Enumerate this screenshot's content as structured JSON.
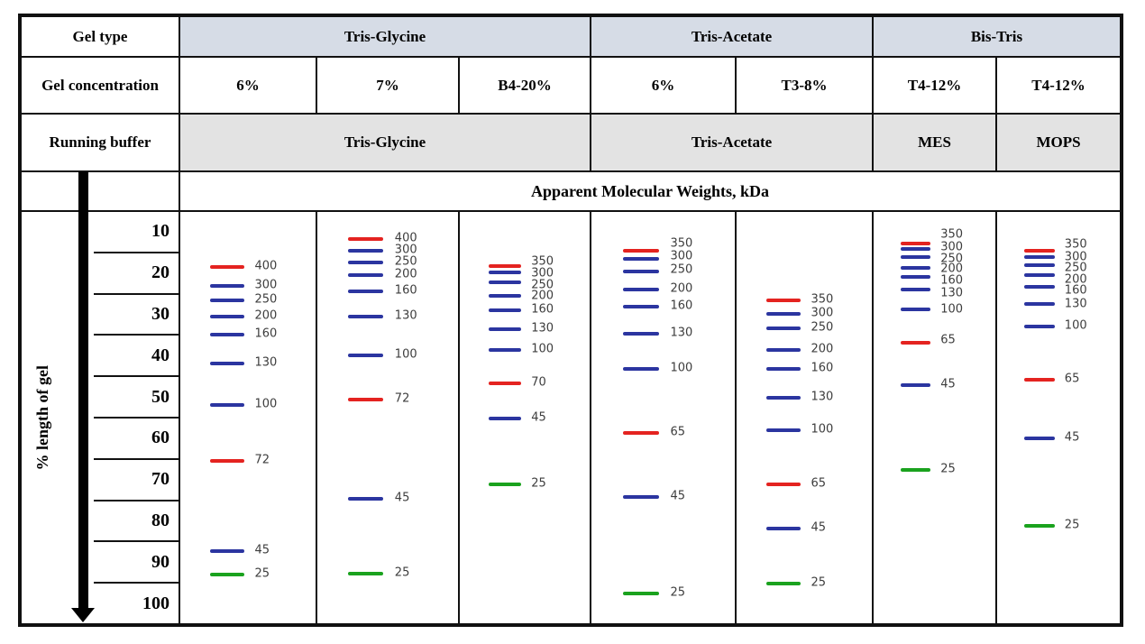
{
  "header": {
    "row_labels": {
      "gel_type": "Gel type",
      "gel_concentration": "Gel concentration",
      "running_buffer": "Running buffer"
    },
    "groups": [
      {
        "name": "Tris-Glycine",
        "span": 3
      },
      {
        "name": "Tris-Acetate",
        "span": 2
      },
      {
        "name": "Bis-Tris",
        "span": 2
      }
    ],
    "running_buffers": [
      {
        "name": "Tris-Glycine",
        "span": 3
      },
      {
        "name": "Tris-Acetate",
        "span": 2
      },
      {
        "name": "MES",
        "span": 1
      },
      {
        "name": "MOPS",
        "span": 1
      }
    ],
    "mw_title": "Apparent Molecular Weights, kDa",
    "axis_label": "% length of gel"
  },
  "colors": {
    "red": "#e42320",
    "blue": "#2b35a0",
    "green": "#1aa21e",
    "group_header_fill": "#d6dce6",
    "buffer_row_fill": "#e3e3e3",
    "border": "#111111",
    "band_label_text": "#3d3d3d"
  },
  "chart_data": {
    "type": "table",
    "title": "Apparent Molecular Weights, kDa",
    "y_axis": {
      "label": "% length of gel",
      "ticks": [
        10,
        20,
        30,
        40,
        50,
        60,
        70,
        80,
        90,
        100
      ],
      "range": [
        0,
        100
      ],
      "direction": "top-to-bottom"
    },
    "legend": "band pct = migration position as % length of gel; colors: red/blue/green marker bands",
    "lanes": [
      {
        "gel_type": "Tris-Glycine",
        "gel_concentration": "6%",
        "running_buffer": "Tris-Glycine",
        "bands": [
          {
            "kda": 400,
            "color": "red",
            "pct": 13.3,
            "label_pct": 13.3
          },
          {
            "kda": 300,
            "color": "blue",
            "pct": 17.9,
            "label_pct": 17.9
          },
          {
            "kda": 250,
            "color": "blue",
            "pct": 21.4,
            "label_pct": 21.4
          },
          {
            "kda": 200,
            "color": "blue",
            "pct": 25.5,
            "label_pct": 25.5
          },
          {
            "kda": 160,
            "color": "blue",
            "pct": 29.9,
            "label_pct": 29.9
          },
          {
            "kda": 130,
            "color": "blue",
            "pct": 36.9,
            "label_pct": 36.9
          },
          {
            "kda": 100,
            "color": "blue",
            "pct": 46.9,
            "label_pct": 46.9
          },
          {
            "kda": 72,
            "color": "red",
            "pct": 60.5,
            "label_pct": 60.5
          },
          {
            "kda": 45,
            "color": "blue",
            "pct": 82.5,
            "label_pct": 82.5
          },
          {
            "kda": 25,
            "color": "green",
            "pct": 88.2,
            "label_pct": 88.2
          }
        ]
      },
      {
        "gel_type": "Tris-Glycine",
        "gel_concentration": "7%",
        "running_buffer": "Tris-Glycine",
        "bands": [
          {
            "kda": 400,
            "color": "red",
            "pct": 6.6,
            "label_pct": 6.6
          },
          {
            "kda": 300,
            "color": "blue",
            "pct": 9.4,
            "label_pct": 9.4
          },
          {
            "kda": 250,
            "color": "blue",
            "pct": 12.2,
            "label_pct": 12.2
          },
          {
            "kda": 200,
            "color": "blue",
            "pct": 15.3,
            "label_pct": 15.3
          },
          {
            "kda": 160,
            "color": "blue",
            "pct": 19.4,
            "label_pct": 19.4
          },
          {
            "kda": 130,
            "color": "blue",
            "pct": 25.5,
            "label_pct": 25.5
          },
          {
            "kda": 100,
            "color": "blue",
            "pct": 34.9,
            "label_pct": 34.9
          },
          {
            "kda": 72,
            "color": "red",
            "pct": 45.6,
            "label_pct": 45.6
          },
          {
            "kda": 45,
            "color": "blue",
            "pct": 69.7,
            "label_pct": 69.7
          },
          {
            "kda": 25,
            "color": "green",
            "pct": 88.0,
            "label_pct": 88.0
          }
        ]
      },
      {
        "gel_type": "Tris-Glycine",
        "gel_concentration": "B4-20%",
        "running_buffer": "Tris-Glycine",
        "bands": [
          {
            "kda": 350,
            "color": "red",
            "pct": 13.1,
            "label_pct": 12.2
          },
          {
            "kda": 300,
            "color": "blue",
            "pct": 14.8,
            "label_pct": 15.1
          },
          {
            "kda": 250,
            "color": "blue",
            "pct": 17.2,
            "label_pct": 17.9
          },
          {
            "kda": 200,
            "color": "blue",
            "pct": 20.5,
            "label_pct": 20.7
          },
          {
            "kda": 160,
            "color": "blue",
            "pct": 23.8,
            "label_pct": 23.8
          },
          {
            "kda": 130,
            "color": "blue",
            "pct": 28.4,
            "label_pct": 28.4
          },
          {
            "kda": 100,
            "color": "blue",
            "pct": 33.6,
            "label_pct": 33.6
          },
          {
            "kda": 70,
            "color": "red",
            "pct": 41.7,
            "label_pct": 41.7
          },
          {
            "kda": 45,
            "color": "blue",
            "pct": 50.2,
            "label_pct": 50.2
          },
          {
            "kda": 25,
            "color": "green",
            "pct": 66.2,
            "label_pct": 66.2
          }
        ]
      },
      {
        "gel_type": "Tris-Acetate",
        "gel_concentration": "6%",
        "running_buffer": "Tris-Acetate",
        "bands": [
          {
            "kda": 350,
            "color": "red",
            "pct": 9.4,
            "label_pct": 7.9
          },
          {
            "kda": 300,
            "color": "blue",
            "pct": 11.4,
            "label_pct": 10.9
          },
          {
            "kda": 250,
            "color": "blue",
            "pct": 14.4,
            "label_pct": 14.2
          },
          {
            "kda": 200,
            "color": "blue",
            "pct": 18.8,
            "label_pct": 18.8
          },
          {
            "kda": 160,
            "color": "blue",
            "pct": 23.1,
            "label_pct": 23.1
          },
          {
            "kda": 130,
            "color": "blue",
            "pct": 29.5,
            "label_pct": 29.5
          },
          {
            "kda": 100,
            "color": "blue",
            "pct": 38.2,
            "label_pct": 38.2
          },
          {
            "kda": 65,
            "color": "red",
            "pct": 53.7,
            "label_pct": 53.7
          },
          {
            "kda": 45,
            "color": "blue",
            "pct": 69.2,
            "label_pct": 69.2
          },
          {
            "kda": 25,
            "color": "green",
            "pct": 92.8,
            "label_pct": 92.8
          }
        ]
      },
      {
        "gel_type": "Tris-Acetate",
        "gel_concentration": "T3-8%",
        "running_buffer": "Tris-Acetate",
        "bands": [
          {
            "kda": 350,
            "color": "red",
            "pct": 21.6,
            "label_pct": 21.6
          },
          {
            "kda": 300,
            "color": "blue",
            "pct": 24.7,
            "label_pct": 24.7
          },
          {
            "kda": 250,
            "color": "blue",
            "pct": 28.2,
            "label_pct": 28.2
          },
          {
            "kda": 200,
            "color": "blue",
            "pct": 33.6,
            "label_pct": 33.6
          },
          {
            "kda": 160,
            "color": "blue",
            "pct": 38.2,
            "label_pct": 38.2
          },
          {
            "kda": 130,
            "color": "blue",
            "pct": 45.2,
            "label_pct": 45.2
          },
          {
            "kda": 100,
            "color": "blue",
            "pct": 53.1,
            "label_pct": 53.1
          },
          {
            "kda": 65,
            "color": "red",
            "pct": 66.2,
            "label_pct": 66.2
          },
          {
            "kda": 45,
            "color": "blue",
            "pct": 76.9,
            "label_pct": 76.9
          },
          {
            "kda": 25,
            "color": "green",
            "pct": 90.4,
            "label_pct": 90.4
          }
        ]
      },
      {
        "gel_type": "Bis-Tris",
        "gel_concentration": "T4-12%",
        "running_buffer": "MES",
        "bands": [
          {
            "kda": 350,
            "color": "red",
            "pct": 7.6,
            "label_pct": 5.7
          },
          {
            "kda": 300,
            "color": "blue",
            "pct": 9.0,
            "label_pct": 8.7
          },
          {
            "kda": 250,
            "color": "blue",
            "pct": 10.9,
            "label_pct": 11.6
          },
          {
            "kda": 200,
            "color": "blue",
            "pct": 13.5,
            "label_pct": 14.0
          },
          {
            "kda": 160,
            "color": "blue",
            "pct": 15.7,
            "label_pct": 16.8
          },
          {
            "kda": 130,
            "color": "blue",
            "pct": 18.8,
            "label_pct": 19.9
          },
          {
            "kda": 100,
            "color": "blue",
            "pct": 23.6,
            "label_pct": 24.0
          },
          {
            "kda": 65,
            "color": "red",
            "pct": 31.7,
            "label_pct": 31.4
          },
          {
            "kda": 45,
            "color": "blue",
            "pct": 42.1,
            "label_pct": 42.1
          },
          {
            "kda": 25,
            "color": "green",
            "pct": 62.7,
            "label_pct": 62.7
          }
        ]
      },
      {
        "gel_type": "Bis-Tris",
        "gel_concentration": "T4-12%",
        "running_buffer": "MOPS",
        "bands": [
          {
            "kda": 350,
            "color": "red",
            "pct": 9.4,
            "label_pct": 8.1
          },
          {
            "kda": 300,
            "color": "blue",
            "pct": 10.9,
            "label_pct": 11.1
          },
          {
            "kda": 250,
            "color": "blue",
            "pct": 12.9,
            "label_pct": 13.8
          },
          {
            "kda": 200,
            "color": "blue",
            "pct": 15.3,
            "label_pct": 16.6
          },
          {
            "kda": 160,
            "color": "blue",
            "pct": 18.1,
            "label_pct": 19.4
          },
          {
            "kda": 130,
            "color": "blue",
            "pct": 22.3,
            "label_pct": 22.5
          },
          {
            "kda": 100,
            "color": "blue",
            "pct": 27.9,
            "label_pct": 27.9
          },
          {
            "kda": 65,
            "color": "red",
            "pct": 40.8,
            "label_pct": 40.8
          },
          {
            "kda": 45,
            "color": "blue",
            "pct": 55.0,
            "label_pct": 55.0
          },
          {
            "kda": 25,
            "color": "green",
            "pct": 76.4,
            "label_pct": 76.4
          }
        ]
      }
    ]
  }
}
